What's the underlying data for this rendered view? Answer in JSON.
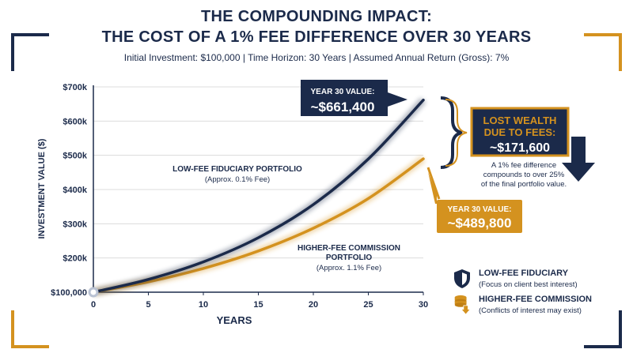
{
  "header": {
    "title_line1": "THE COMPOUNDING IMPACT:",
    "title_line2": "THE COST OF A 1% FEE DIFFERENCE OVER 30 YEARS",
    "subtitle": "Initial Investment: $100,000 | Time Horizon: 30 Years | Assumed Annual Return (Gross): 7%"
  },
  "colors": {
    "navy": "#1b2a4a",
    "gold": "#d4921f",
    "grid": "#dcdcdc"
  },
  "chart_data": {
    "type": "line",
    "xlabel": "YEARS",
    "ylabel": "INVESTMENT VALUE ($)",
    "xlim": [
      0,
      30
    ],
    "ylim": [
      100000,
      700000
    ],
    "x_ticks": [
      0,
      5,
      10,
      15,
      20,
      25,
      30
    ],
    "y_ticks": [
      100000,
      200000,
      300000,
      400000,
      500000,
      600000,
      700000
    ],
    "y_tick_labels": [
      "$100,000",
      "$200k",
      "$300k",
      "$400k",
      "$500k",
      "$600k",
      "$700k"
    ],
    "grid": "horizontal",
    "series": [
      {
        "color": "#1b2a4a",
        "x": [
          0,
          5,
          10,
          15,
          20,
          25,
          30
        ],
        "values": [
          100000,
          137400,
          188700,
          259200,
          356100,
          489200,
          661400
        ],
        "label": "LOW-FEE FIDUCIARY PORTFOLIO",
        "label_sub": "(Approx. 0.1% Fee)"
      },
      {
        "color": "#d4921f",
        "x": [
          0,
          5,
          10,
          15,
          20,
          25,
          30
        ],
        "values": [
          100000,
          130200,
          169400,
          220400,
          287000,
          373600,
          489800
        ],
        "label_line1": "HIGHER-FEE COMMISSION",
        "label_line2": "PORTFOLIO",
        "label_sub": "(Approx. 1.1% Fee)"
      }
    ],
    "annotations": {
      "low_fee_end": {
        "title": "YEAR 30 VALUE:",
        "value": "~$661,400"
      },
      "high_fee_end": {
        "title": "YEAR 30 VALUE:",
        "value": "~$489,800"
      },
      "lost_wealth": {
        "title_line1": "LOST WEALTH",
        "title_line2": "DUE TO FEES:",
        "value": "~$171,600",
        "note_line1": "A 1% fee difference",
        "note_line2": "compounds to over 25%",
        "note_line3": "of the final portfolio value."
      }
    }
  },
  "legend": [
    {
      "icon": "shield-icon",
      "title": "LOW-FEE FIDUCIARY",
      "subtitle": "(Focus on client best interest)"
    },
    {
      "icon": "coins-down-icon",
      "title": "HIGHER-FEE COMMISSION",
      "subtitle": "(Conflicts of interest may exist)"
    }
  ]
}
